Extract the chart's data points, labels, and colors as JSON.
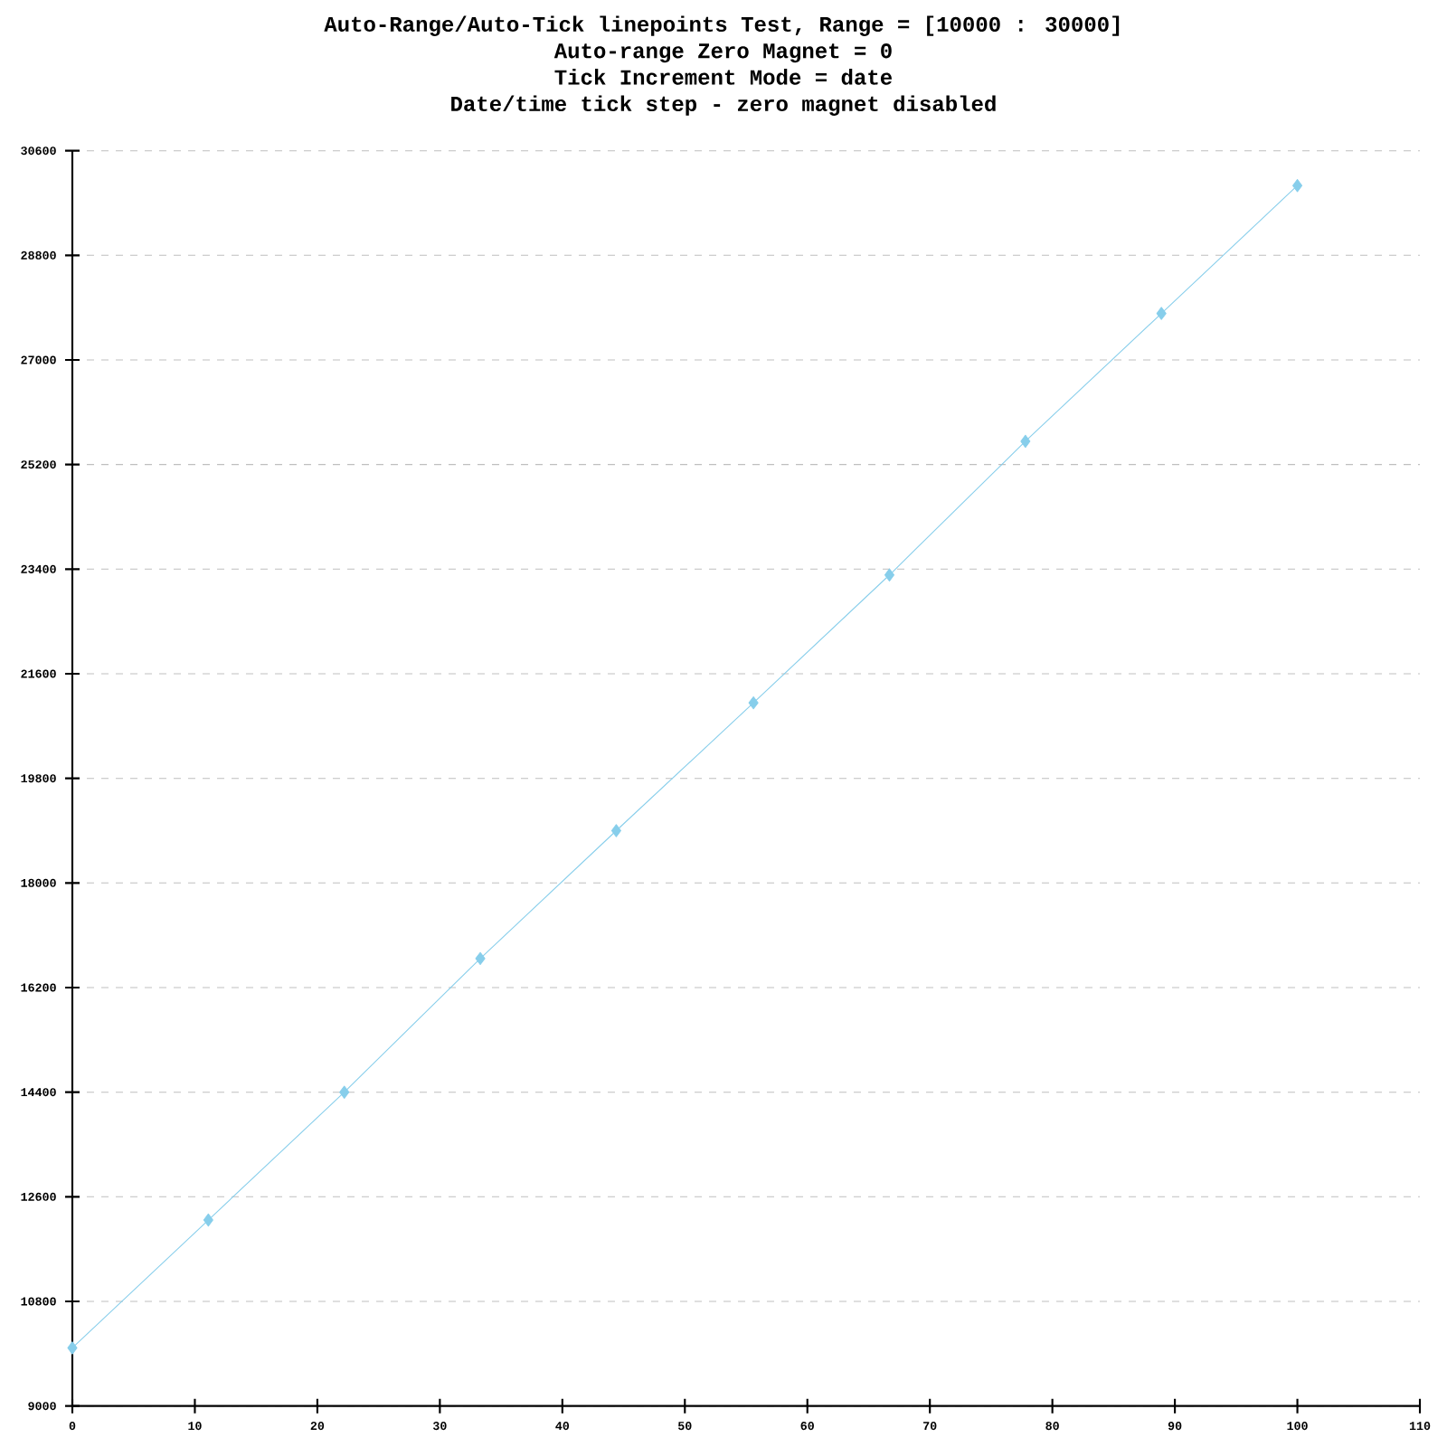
{
  "chart_data": {
    "type": "line",
    "title": "Auto-Range/Auto-Tick linepoints Test, Range = [10000 : 30000]",
    "subtitle": [
      "Auto-range Zero Magnet = 0",
      "Tick Increment Mode = date",
      "Date/time tick step - zero magnet disabled"
    ],
    "x": [
      0,
      11.1,
      22.2,
      33.3,
      44.4,
      55.6,
      66.7,
      77.8,
      88.9,
      100
    ],
    "series": [
      {
        "color": "#87ceeb",
        "values": [
          10000,
          12200,
          14400,
          16700,
          18900,
          21100,
          23300,
          25600,
          27800,
          30000
        ]
      }
    ],
    "xlim": [
      0,
      110
    ],
    "xticks": [
      0,
      10,
      20,
      30,
      40,
      50,
      60,
      70,
      80,
      90,
      100,
      110
    ],
    "ylim": [
      9000,
      30600
    ],
    "yticks": [
      9000,
      10800,
      12600,
      14400,
      16200,
      18000,
      19800,
      21600,
      23400,
      25200,
      27000,
      28800,
      30600
    ],
    "grid": "y",
    "marker": "diamond",
    "line_style": "solid"
  }
}
